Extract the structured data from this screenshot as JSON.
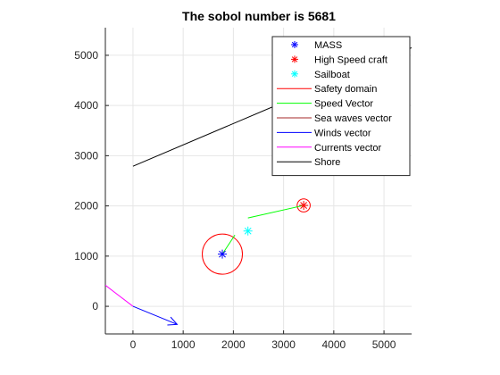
{
  "chart_data": {
    "type": "scatter",
    "title": "The sobol number is 5681",
    "xlim": [
      -550,
      5550
    ],
    "ylim": [
      -550,
      5550
    ],
    "x_ticks": [
      0,
      1000,
      2000,
      3000,
      4000,
      5000
    ],
    "y_ticks": [
      0,
      1000,
      2000,
      3000,
      4000,
      5000
    ],
    "grid": true,
    "legend_position": "top-right",
    "legend": [
      {
        "label": "MASS",
        "marker": "*",
        "color": "#0000ff"
      },
      {
        "label": "High Speed craft",
        "marker": "*",
        "color": "#ff0000"
      },
      {
        "label": "Sailboat",
        "marker": "*",
        "color": "#00ffff"
      },
      {
        "label": "Safety domain",
        "line": true,
        "color": "#ff0000"
      },
      {
        "label": "Speed Vector",
        "line": true,
        "color": "#00ff00"
      },
      {
        "label": "Sea waves vector",
        "line": true,
        "color": "#a52a2a"
      },
      {
        "label": "Winds vector",
        "line": true,
        "color": "#0000ff"
      },
      {
        "label": "Currents vector",
        "line": true,
        "color": "#ff00ff"
      },
      {
        "label": "Shore",
        "line": true,
        "color": "#000000"
      }
    ],
    "points": {
      "mass": {
        "x": 1780,
        "y": 1040
      },
      "high_speed_craft": {
        "x": 3400,
        "y": 2010
      },
      "sailboat": {
        "x": 2290,
        "y": 1500
      }
    },
    "safety_domains": [
      {
        "cx": 1780,
        "cy": 1040,
        "r": 400
      },
      {
        "cx": 3400,
        "cy": 2010,
        "r": 130
      }
    ],
    "speed_vectors": [
      {
        "x1": 1780,
        "y1": 1040,
        "x2": 2030,
        "y2": 1420
      },
      {
        "x1": 3400,
        "y1": 2010,
        "x2": 2290,
        "y2": 1760
      }
    ],
    "winds_vector": {
      "x1": 0,
      "y1": 0,
      "x2": 880,
      "y2": -360
    },
    "currents_vector": {
      "x1": -550,
      "y1": 420,
      "x2": 0,
      "y2": 0
    },
    "shore": {
      "x1": 0,
      "y1": 2790,
      "x2": 5550,
      "y2": 5150
    }
  }
}
